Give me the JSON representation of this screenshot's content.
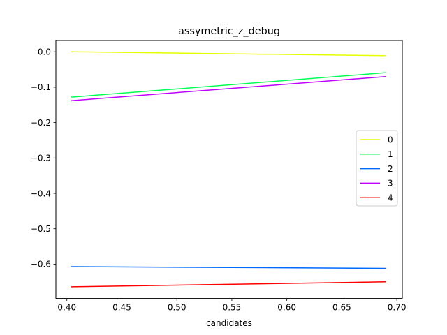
{
  "chart_data": {
    "type": "line",
    "title": "assymetric_z_debug",
    "xlabel": "candidates",
    "ylabel": "",
    "xlim": [
      0.39,
      0.705
    ],
    "ylim": [
      -0.697,
      0.032
    ],
    "xticks": [
      0.4,
      0.45,
      0.5,
      0.55,
      0.6,
      0.65,
      0.7
    ],
    "xtick_labels": [
      "0.40",
      "0.45",
      "0.50",
      "0.55",
      "0.60",
      "0.65",
      "0.70"
    ],
    "yticks": [
      0.0,
      -0.1,
      -0.2,
      -0.3,
      -0.4,
      -0.5,
      -0.6
    ],
    "ytick_labels": [
      "0.0",
      "−0.1",
      "−0.2",
      "−0.3",
      "−0.4",
      "−0.5",
      "−0.6"
    ],
    "grid": false,
    "legend_position": "center-right",
    "series": [
      {
        "name": "0",
        "color": "#e6ff00",
        "x": [
          0.404,
          0.69
        ],
        "y": [
          0.0,
          -0.011
        ]
      },
      {
        "name": "1",
        "color": "#00ff55",
        "x": [
          0.404,
          0.69
        ],
        "y": [
          -0.128,
          -0.059
        ]
      },
      {
        "name": "2",
        "color": "#006aff",
        "x": [
          0.404,
          0.69
        ],
        "y": [
          -0.607,
          -0.612
        ]
      },
      {
        "name": "3",
        "color": "#bf00ff",
        "x": [
          0.404,
          0.69
        ],
        "y": [
          -0.138,
          -0.07
        ]
      },
      {
        "name": "4",
        "color": "#ff0000",
        "x": [
          0.404,
          0.69
        ],
        "y": [
          -0.664,
          -0.65
        ]
      }
    ]
  }
}
